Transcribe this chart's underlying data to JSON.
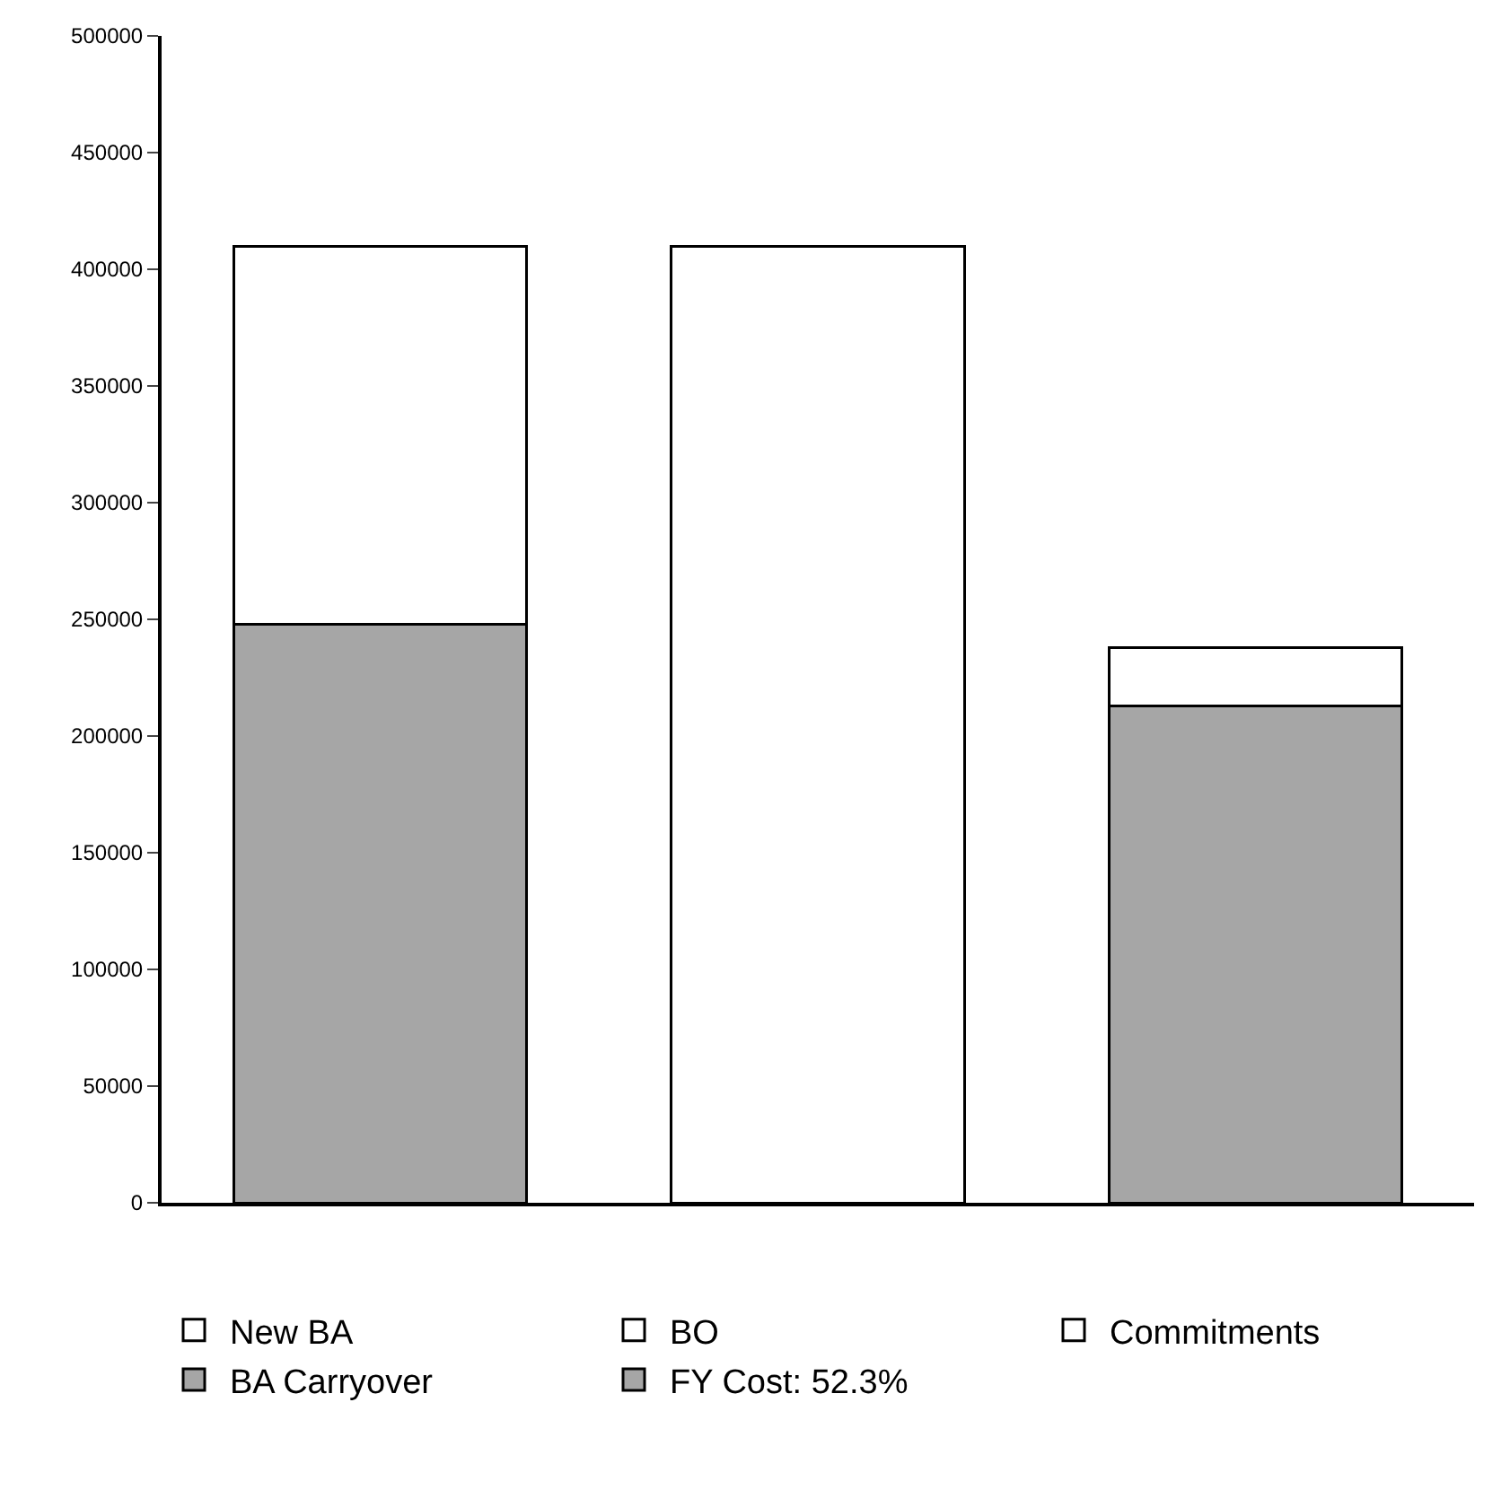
{
  "chart_data": {
    "type": "bar",
    "stacked": true,
    "categories": [
      null,
      null,
      null
    ],
    "series": [
      {
        "name": "BA Carryover",
        "color": "#a6a6a6",
        "values": [
          248000,
          null,
          null
        ]
      },
      {
        "name": "New BA",
        "color": "#ffffff",
        "values": [
          162000,
          null,
          null
        ]
      },
      {
        "name": "BO",
        "color": "#ffffff",
        "values": [
          null,
          410000,
          null
        ]
      },
      {
        "name": "FY Cost: 52.3%",
        "color": "#a6a6a6",
        "values": [
          null,
          null,
          213000
        ]
      },
      {
        "name": "Commitments",
        "color": "#ffffff",
        "values": [
          null,
          null,
          25000
        ]
      }
    ],
    "ylim": [
      0,
      500000
    ],
    "yticks": [
      0,
      50000,
      100000,
      150000,
      200000,
      250000,
      300000,
      350000,
      400000,
      450000,
      500000
    ],
    "legend": "bottom",
    "tick_labels": "y"
  }
}
